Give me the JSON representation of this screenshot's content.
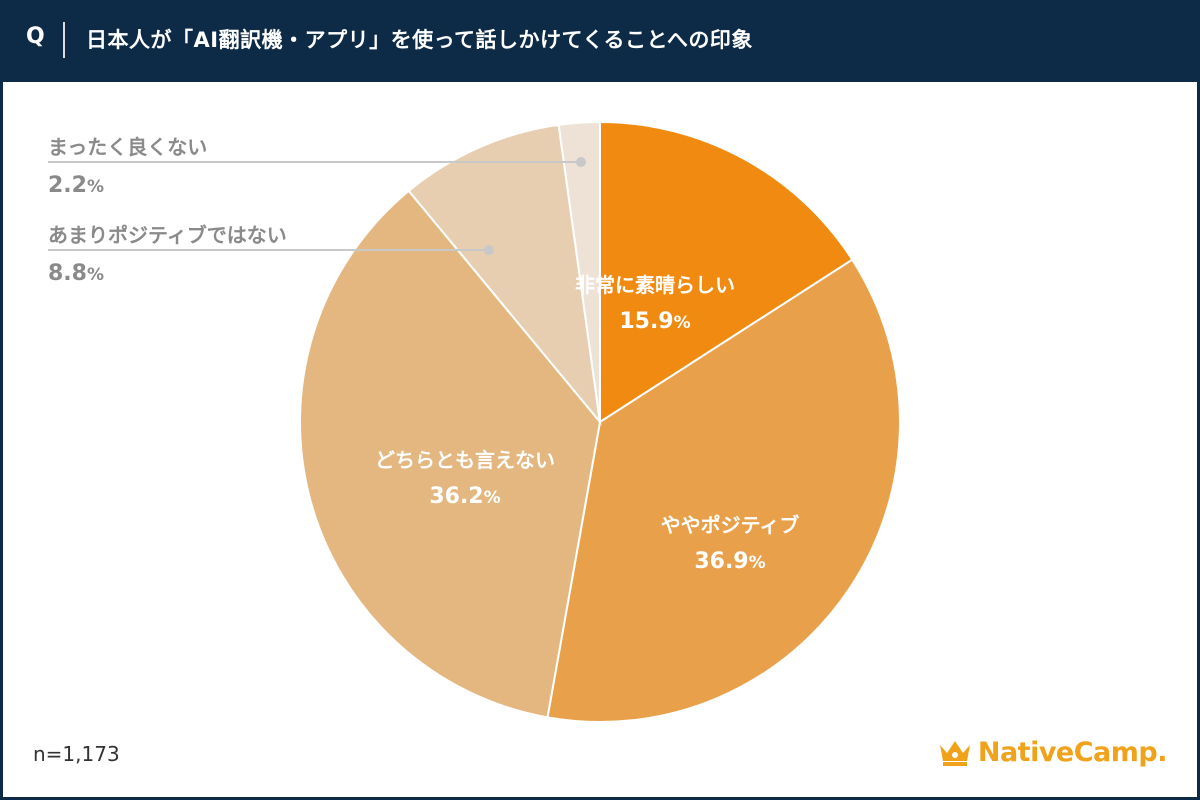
{
  "header": {
    "q_label": "Q",
    "title": "日本人が「AI翻訳機・アプリ」を使って話しかけてくることへの印象"
  },
  "footer": {
    "sample": "n=1,173",
    "brand": "NativeCamp."
  },
  "colors": {
    "header_bg": "#0d2a47",
    "brand": "#f0a21b"
  },
  "chart_data": {
    "type": "pie",
    "unit": "%",
    "slices": [
      {
        "label": "非常に素晴らしい",
        "value": 15.9,
        "color": "#f08a10"
      },
      {
        "label": "ややポジティブ",
        "value": 36.9,
        "color": "#e9a04a"
      },
      {
        "label": "どちらとも言えない",
        "value": 36.2,
        "color": "#e4b780"
      },
      {
        "label": "あまりポジティブではない",
        "value": 8.8,
        "color": "#e8ceb0"
      },
      {
        "label": "まったく良くない",
        "value": 2.2,
        "color": "#eee2d6"
      }
    ]
  }
}
